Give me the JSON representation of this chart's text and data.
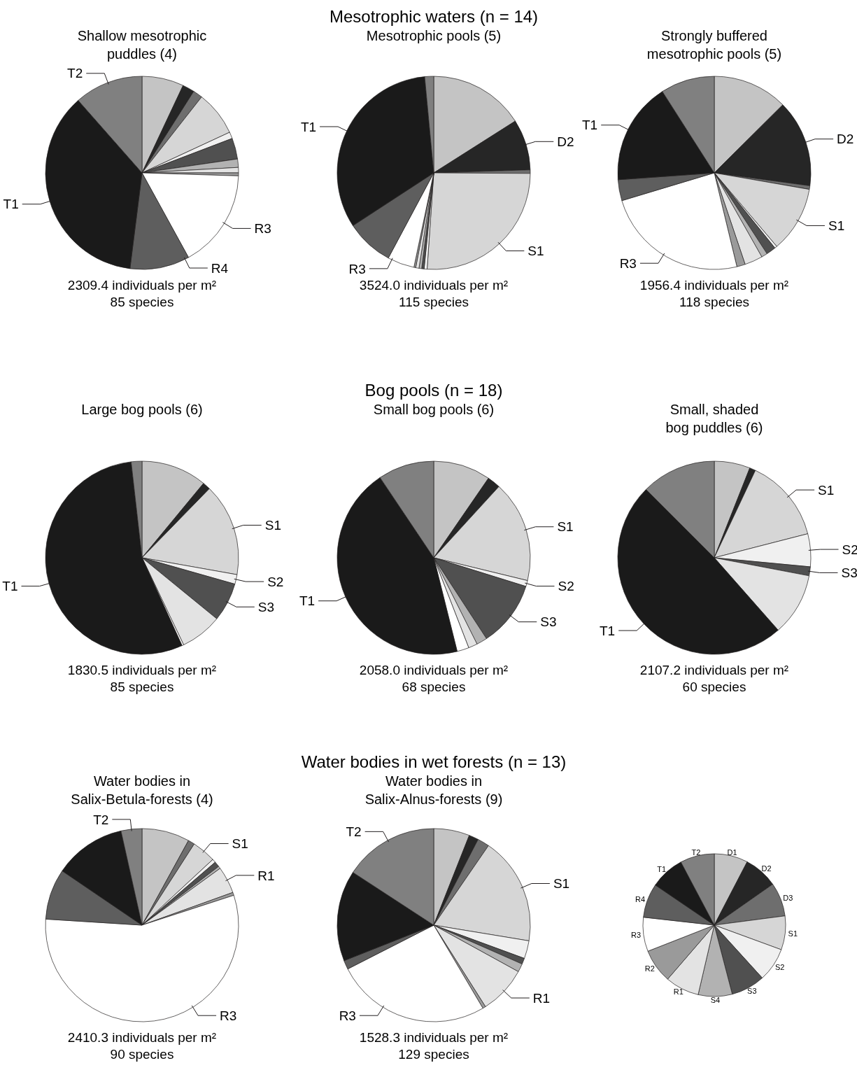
{
  "chart_data": [
    {
      "type": "pie",
      "title": "Shallow mesotrophic\npuddles (4)",
      "categories": [
        null,
        null,
        null,
        null,
        null,
        null,
        null,
        null,
        null,
        "R3",
        "R4",
        "T1",
        "T2"
      ],
      "values": [
        7,
        2,
        1.6,
        7.5,
        1.1,
        3.5,
        1.4,
        0.9,
        0.5,
        16.5,
        10,
        36.5,
        11.5
      ],
      "colors": [
        "#c4c4c4",
        "#262626",
        "#6e6e6e",
        "#d6d6d6",
        "#f0f0f0",
        "#505050",
        "#b2b2b2",
        "#e3e3e3",
        "#9a9a9a",
        "#ffffff",
        "#5e5e5e",
        "#1a1a1a",
        "#808080"
      ],
      "annotations": [
        "2309.4 individuals per m²",
        "85 species"
      ]
    },
    {
      "type": "pie",
      "subtitle": "Mesotrophic waters (n = 14)",
      "title": "Mesotrophic pools (5)",
      "categories": [
        null,
        "D2",
        null,
        "S1",
        null,
        null,
        null,
        null,
        null,
        "R3",
        null,
        "T1",
        null
      ],
      "values": [
        16,
        8.5,
        0.6,
        26,
        0.5,
        0.4,
        0.45,
        0.55,
        0.3,
        4.5,
        8,
        32.7,
        1.5
      ],
      "colors": [
        "#c4c4c4",
        "#262626",
        "#6e6e6e",
        "#d6d6d6",
        "#f0f0f0",
        "#505050",
        "#b2b2b2",
        "#e3e3e3",
        "#9a9a9a",
        "#ffffff",
        "#5e5e5e",
        "#1a1a1a",
        "#808080"
      ],
      "annotations": [
        "3524.0 individuals per m²",
        "115 species"
      ]
    },
    {
      "type": "pie",
      "title": "Strongly buffered\nmesotrophic pools (5)",
      "categories": [
        null,
        "D2",
        null,
        "S1",
        null,
        null,
        null,
        null,
        null,
        "R3",
        null,
        "T1",
        null
      ],
      "values": [
        12.5,
        14.5,
        0.6,
        11,
        0.4,
        1.6,
        1,
        3,
        1.4,
        24,
        3.5,
        17,
        9
      ],
      "colors": [
        "#c4c4c4",
        "#262626",
        "#6e6e6e",
        "#d6d6d6",
        "#f0f0f0",
        "#505050",
        "#b2b2b2",
        "#e3e3e3",
        "#9a9a9a",
        "#ffffff",
        "#5e5e5e",
        "#1a1a1a",
        "#808080"
      ],
      "annotations": [
        "1956.4 individuals per m²",
        "118 species"
      ]
    },
    {
      "type": "pie",
      "title": "Large bog pools (6)",
      "categories": [
        null,
        null,
        "S1",
        "S2",
        "S3",
        null,
        null,
        "T1",
        null
      ],
      "values": [
        11,
        1.3,
        15.5,
        1.6,
        6.5,
        7,
        0.3,
        55,
        1.8
      ],
      "colors": [
        "#c4c4c4",
        "#262626",
        "#d6d6d6",
        "#f0f0f0",
        "#505050",
        "#e3e3e3",
        "#ffffff",
        "#1a1a1a",
        "#808080"
      ],
      "annotations": [
        "1830.5 individuals per m²",
        "85 species"
      ]
    },
    {
      "type": "pie",
      "subtitle": "Bog pools (n = 18)",
      "title": "Small bog pools (6)",
      "categories": [
        null,
        null,
        "S1",
        "S2",
        "S3",
        null,
        null,
        null,
        "T1",
        null
      ],
      "values": [
        9.6,
        2.2,
        17,
        1,
        11,
        1.8,
        1.5,
        2,
        44.5,
        9.4
      ],
      "colors": [
        "#c4c4c4",
        "#262626",
        "#d6d6d6",
        "#f0f0f0",
        "#505050",
        "#b2b2b2",
        "#e3e3e3",
        "#ffffff",
        "#1a1a1a",
        "#808080"
      ],
      "annotations": [
        "2058.0 individuals per m²",
        "68 species"
      ]
    },
    {
      "type": "pie",
      "title": "Small, shaded\nbog puddles (6)",
      "categories": [
        null,
        null,
        "S1",
        "S2",
        "S3",
        null,
        "T1",
        null
      ],
      "values": [
        6,
        1,
        14,
        5.5,
        1.5,
        10.5,
        49,
        12.5
      ],
      "colors": [
        "#c4c4c4",
        "#262626",
        "#d6d6d6",
        "#f0f0f0",
        "#505050",
        "#e3e3e3",
        "#1a1a1a",
        "#808080"
      ],
      "annotations": [
        "2107.2 individuals per m²",
        "60 species"
      ]
    },
    {
      "type": "pie",
      "title": "Water bodies in\nSalix-Betula-forests (4)",
      "categories": [
        null,
        null,
        "S1",
        null,
        null,
        null,
        "R1",
        null,
        "R3",
        null,
        null,
        "T2"
      ],
      "values": [
        8,
        1.1,
        4,
        0.6,
        0.9,
        0.4,
        4.5,
        0.5,
        56,
        8.5,
        12,
        3.5
      ],
      "colors": [
        "#c4c4c4",
        "#6e6e6e",
        "#d6d6d6",
        "#f0f0f0",
        "#505050",
        "#b2b2b2",
        "#e3e3e3",
        "#9a9a9a",
        "#ffffff",
        "#5e5e5e",
        "#1a1a1a",
        "#808080"
      ],
      "annotations": [
        "2410.3 individuals per m²",
        "90 species"
      ]
    },
    {
      "type": "pie",
      "subtitle": "Water bodies in wet forests (n = 13)",
      "title": "Water bodies in\nSalix-Alnus-forests (9)",
      "categories": [
        null,
        null,
        null,
        "S1",
        null,
        null,
        null,
        "R1",
        null,
        "R3",
        null,
        null,
        "T2"
      ],
      "values": [
        6,
        1.6,
        2,
        18,
        3,
        1,
        1.4,
        8,
        0.5,
        26,
        1.5,
        15.2,
        15.8
      ],
      "colors": [
        "#c4c4c4",
        "#262626",
        "#6e6e6e",
        "#d6d6d6",
        "#f0f0f0",
        "#505050",
        "#b2b2b2",
        "#e3e3e3",
        "#9a9a9a",
        "#ffffff",
        "#5e5e5e",
        "#1a1a1a",
        "#808080"
      ],
      "annotations": [
        "1528.3 individuals per m²",
        "129 species"
      ]
    },
    {
      "type": "pie",
      "categories": [
        "D1",
        "D2",
        "D3",
        "S1",
        "S2",
        "S3",
        "S4",
        "R1",
        "R2",
        "R3",
        "R4",
        "T1",
        "T2"
      ],
      "values": [
        7.63,
        7.64,
        7.65,
        7.66,
        7.67,
        7.68,
        7.69,
        7.7,
        7.71,
        7.72,
        7.73,
        7.74,
        7.75
      ],
      "colors": [
        "#c4c4c4",
        "#262626",
        "#6e6e6e",
        "#d6d6d6",
        "#f0f0f0",
        "#505050",
        "#b2b2b2",
        "#e3e3e3",
        "#9a9a9a",
        "#ffffff",
        "#5e5e5e",
        "#1a1a1a",
        "#808080"
      ]
    }
  ]
}
